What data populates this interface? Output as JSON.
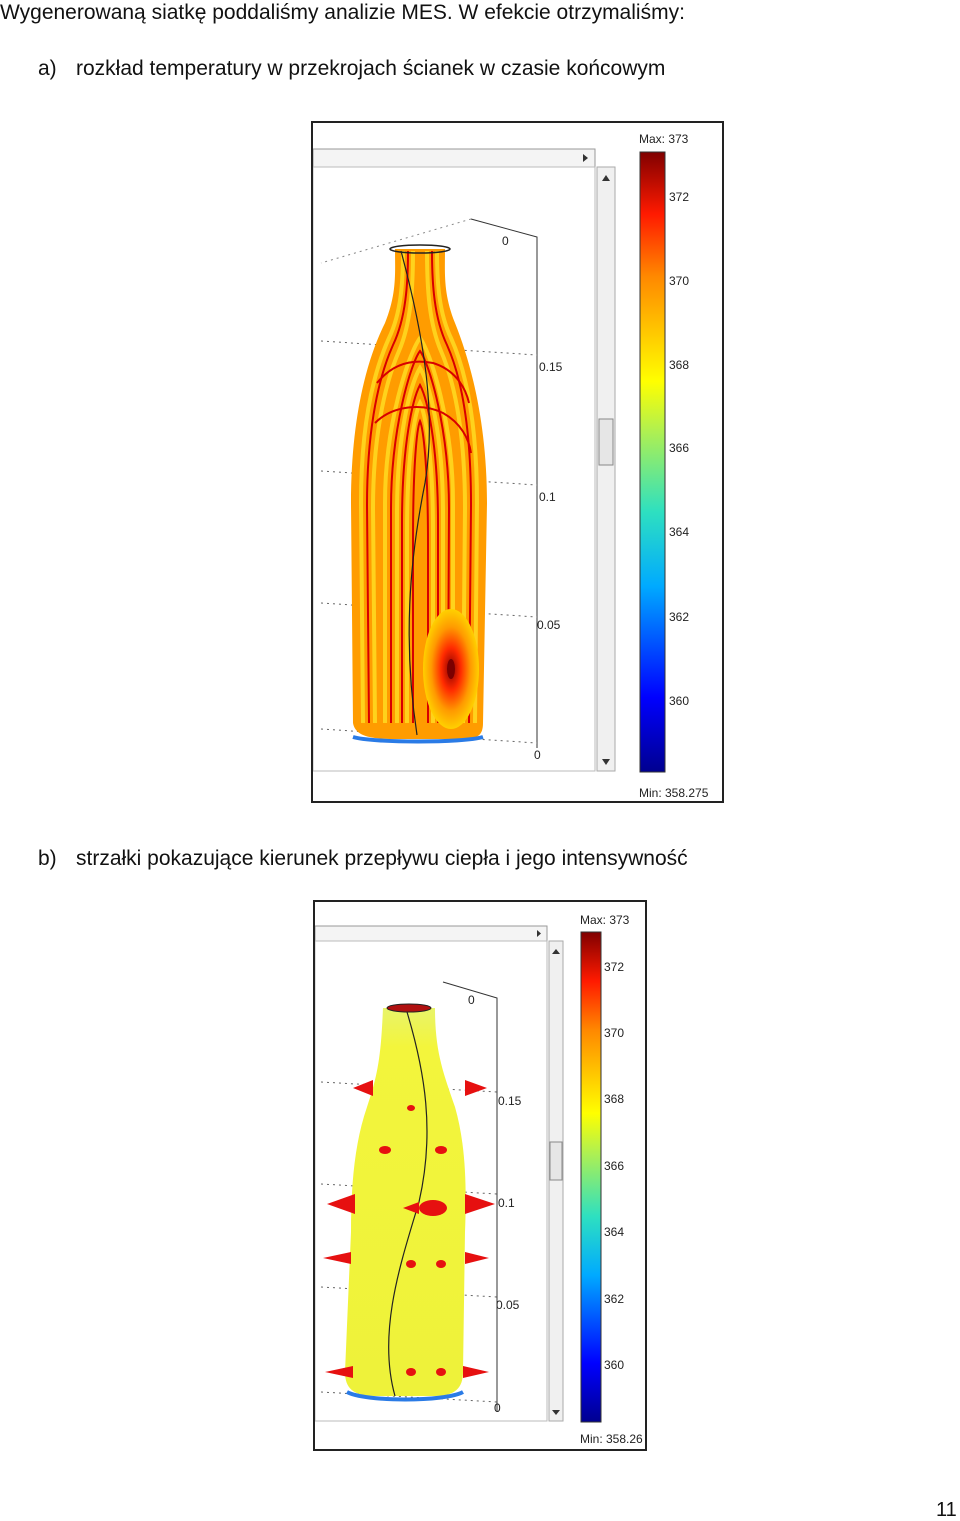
{
  "intro": "Wygenerowaną siatkę poddaliśmy analizie MES. W efekcie otrzymaliśmy:",
  "item_a": {
    "marker": "a)",
    "text": "rozkład temperatury w przekrojach ścianek w czasie końcowym"
  },
  "item_b": {
    "marker": "b)",
    "text": "strzałki pokazujące kierunek przepływu ciepła i jego intensywność"
  },
  "figure_a": {
    "max_label": "Max: 373",
    "min_label": "Min: 358.275",
    "colorbar_ticks": [
      "372",
      "370",
      "368",
      "366",
      "364",
      "362",
      "360"
    ],
    "axis_ticks": [
      "0",
      "0.15",
      "0.1",
      "0.05",
      "0"
    ]
  },
  "figure_b": {
    "max_label": "Max: 373",
    "min_label": "Min: 358.26",
    "colorbar_ticks": [
      "372",
      "370",
      "368",
      "366",
      "364",
      "362",
      "360"
    ],
    "axis_ticks": [
      "0",
      "0.15",
      "0.1",
      "0.05",
      "0"
    ]
  },
  "page_number": "11",
  "colors": {
    "hot": "#a50000",
    "warm": "#ff9a00",
    "yellow": "#f2f23a",
    "cold": "#0000a0",
    "arrow": "#e61010"
  }
}
